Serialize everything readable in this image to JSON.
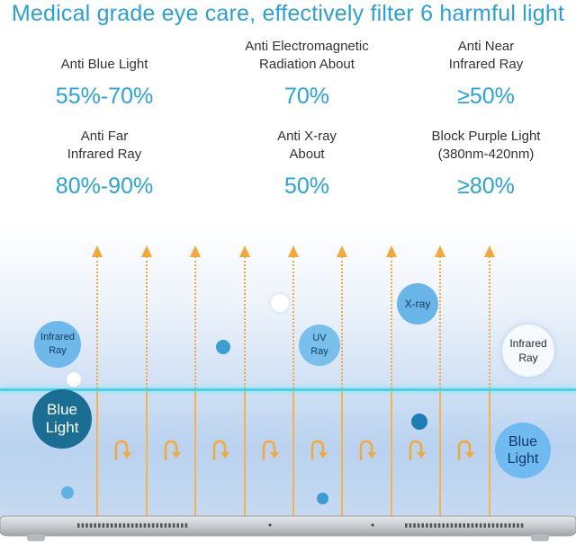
{
  "headline": "Medical grade eye care, effectively filter 6 harmful light",
  "stats": [
    {
      "label": "Anti Blue Light",
      "value": "55%-70%"
    },
    {
      "label": "Anti Electromagnetic\nRadiation About",
      "value": "70%"
    },
    {
      "label": "Anti Near\nInfrared Ray",
      "value": "≥50%"
    },
    {
      "label": "Anti Far\nInfrared Ray",
      "value": "80%-90%"
    },
    {
      "label": "Anti X-ray\nAbout",
      "value": "50%"
    },
    {
      "label": "Block Purple Light\n(380nm-420nm)",
      "value": "≥80%"
    }
  ],
  "bubbles": {
    "infrared_left": "Infrared\nRay",
    "uv": "UV\nRay",
    "xray": "X-ray",
    "infrared_right": "Infrared\nRay",
    "blue_left": "Blue\nLight",
    "blue_right": "Blue\nLight"
  },
  "colors": {
    "accent": "#2aa0d8",
    "arrow": "#f3a93a",
    "filter_line": "#46d3e6",
    "blue_light_dark": "#1a6d93"
  }
}
